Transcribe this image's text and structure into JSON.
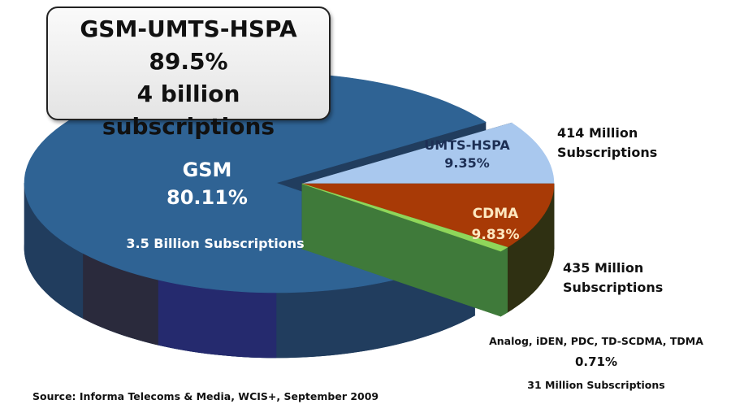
{
  "chart_data": {
    "type": "pie",
    "style": "3d-exploded",
    "slices": [
      {
        "name": "GSM",
        "value": 80.11,
        "label": "GSM",
        "percent_label": "80.11%",
        "note": "3.5 Billion Subscriptions",
        "color": "#2f6394",
        "side_color": "#213d5e"
      },
      {
        "name": "UMTS-HSPA",
        "value": 9.35,
        "label": "UMTS-HSPA",
        "percent_label": "9.35%",
        "note": "414 Million Subscriptions",
        "color": "#a9c8ee",
        "side_color": "#1d3550"
      },
      {
        "name": "CDMA",
        "value": 9.83,
        "label": "CDMA",
        "percent_label": "9.83%",
        "note": "435 Million Subscriptions",
        "color": "#a83a06",
        "side_color": "#2f3012"
      },
      {
        "name": "Analog, iDEN, PDC, TD-SCDMA, TDMA",
        "value": 0.71,
        "label": "Analog, iDEN, PDC, TD-SCDMA, TDMA",
        "percent_label": "0.71%",
        "note": "31 Million Subscriptions",
        "color": "#8fd65a",
        "side_color": "#3f7a3a"
      }
    ],
    "callout": {
      "line1": "GSM-UMTS-HSPA",
      "line2": "89.5%",
      "line3": "4 billion subscriptions"
    },
    "source": "Source: Informa Telecoms & Media, WCIS+, September 2009"
  }
}
